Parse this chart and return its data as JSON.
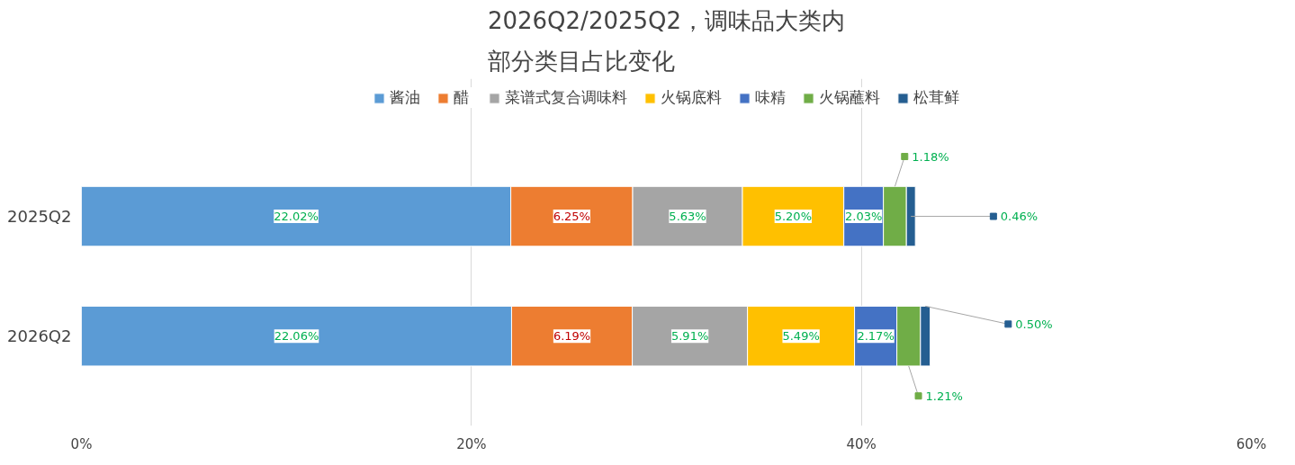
{
  "chart_data": {
    "type": "bar",
    "orientation": "horizontal",
    "stacked": true,
    "title": "2026Q2/2025Q2，调味品大类内部分类目占比变化",
    "categories": [
      "2025Q2",
      "2026Q2"
    ],
    "series": [
      {
        "name": "酱油",
        "color": "#5b9bd5",
        "values": [
          22.02,
          22.06
        ],
        "value_labels": [
          "22.02%",
          "22.06%"
        ]
      },
      {
        "name": "醋",
        "color": "#ed7d31",
        "values": [
          6.25,
          6.19
        ],
        "value_labels": [
          "6.25%",
          "6.19%"
        ]
      },
      {
        "name": "菜谱式复合调味料",
        "color": "#a5a5a5",
        "values": [
          5.63,
          5.91
        ],
        "value_labels": [
          "5.63%",
          "5.91%"
        ]
      },
      {
        "name": "火锅底料",
        "color": "#ffc000",
        "values": [
          5.2,
          5.49
        ],
        "value_labels": [
          "5.20%",
          "5.49%"
        ]
      },
      {
        "name": "味精",
        "color": "#4472c4",
        "values": [
          2.03,
          2.17
        ],
        "value_labels": [
          "2.03%",
          "2.17%"
        ]
      },
      {
        "name": "火锅蘸料",
        "color": "#70ad47",
        "values": [
          1.18,
          1.21
        ],
        "value_labels": [
          "1.18%",
          "1.21%"
        ]
      },
      {
        "name": "松茸鲜",
        "color": "#255e91",
        "values": [
          0.46,
          0.5
        ],
        "value_labels": [
          "0.46%",
          "0.50%"
        ]
      }
    ],
    "xlim": [
      0,
      60
    ],
    "xticks": [
      {
        "value": 0,
        "label": "0%"
      },
      {
        "value": 20,
        "label": "20%"
      },
      {
        "value": 40,
        "label": "40%"
      },
      {
        "value": 60,
        "label": "60%"
      }
    ],
    "grid": "x",
    "legend": "top"
  }
}
